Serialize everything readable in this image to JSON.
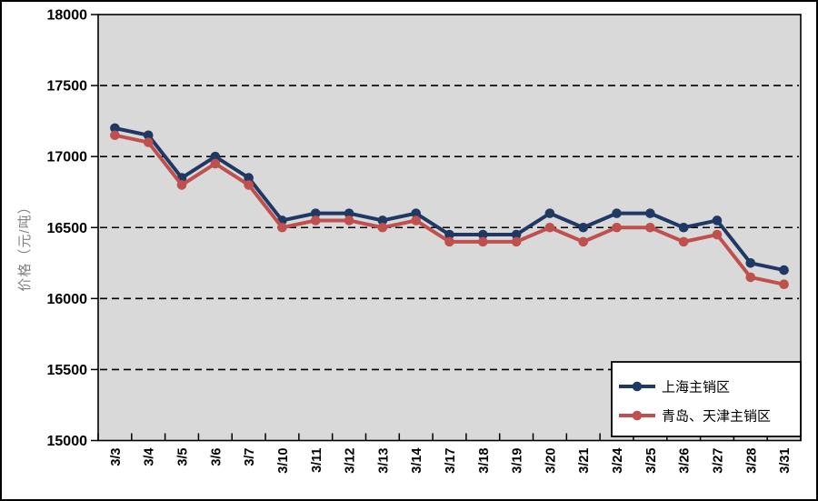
{
  "chart_data": {
    "type": "line",
    "title": "",
    "xlabel": "",
    "ylabel": "价格（元/吨）",
    "ylim": [
      15000,
      18000
    ],
    "ytick_step": 500,
    "yticks": [
      15000,
      15500,
      16000,
      16500,
      17000,
      17500,
      18000
    ],
    "grid": "horizontal-dashed",
    "plot_bg_color": "#d9d9d9",
    "gridline_color": "#000000",
    "categories": [
      "3/3",
      "3/4",
      "3/5",
      "3/6",
      "3/7",
      "3/10",
      "3/11",
      "3/12",
      "3/13",
      "3/14",
      "3/17",
      "3/18",
      "3/19",
      "3/20",
      "3/21",
      "3/24",
      "3/25",
      "3/26",
      "3/27",
      "3/28",
      "3/31"
    ],
    "series": [
      {
        "name": "上海主销区",
        "color": "#1f3864",
        "marker": "circle",
        "values": [
          17200,
          17150,
          16850,
          17000,
          16850,
          16550,
          16600,
          16600,
          16550,
          16600,
          16450,
          16450,
          16450,
          16600,
          16500,
          16600,
          16600,
          16500,
          16550,
          16250,
          16200
        ]
      },
      {
        "name": "青岛、天津主销区",
        "color": "#c0504d",
        "marker": "circle",
        "values": [
          17150,
          17100,
          16800,
          16950,
          16800,
          16500,
          16550,
          16550,
          16500,
          16550,
          16400,
          16400,
          16400,
          16500,
          16400,
          16500,
          16500,
          16400,
          16450,
          16150,
          16100
        ]
      }
    ],
    "legend": {
      "position": "lower-right",
      "items": [
        "上海主销区",
        "青岛、天津主销区"
      ]
    }
  }
}
